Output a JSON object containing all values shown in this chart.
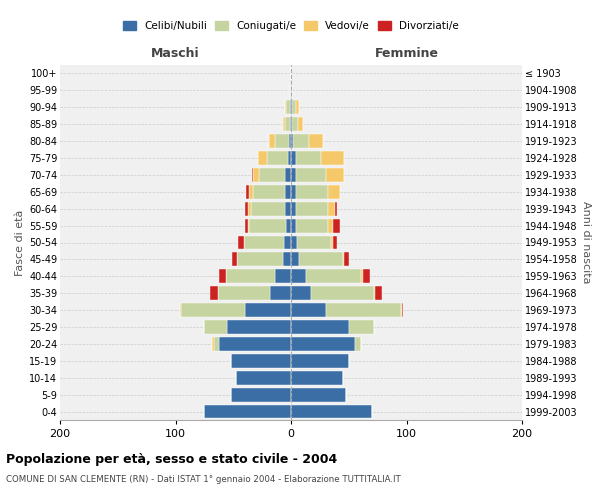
{
  "age_groups": [
    "0-4",
    "5-9",
    "10-14",
    "15-19",
    "20-24",
    "25-29",
    "30-34",
    "35-39",
    "40-44",
    "45-49",
    "50-54",
    "55-59",
    "60-64",
    "65-69",
    "70-74",
    "75-79",
    "80-84",
    "85-89",
    "90-94",
    "95-99",
    "100+"
  ],
  "birth_years": [
    "1999-2003",
    "1994-1998",
    "1989-1993",
    "1984-1988",
    "1979-1983",
    "1974-1978",
    "1969-1973",
    "1964-1968",
    "1959-1963",
    "1954-1958",
    "1949-1953",
    "1944-1948",
    "1939-1943",
    "1934-1938",
    "1929-1933",
    "1924-1928",
    "1919-1923",
    "1914-1918",
    "1909-1913",
    "1904-1908",
    "≤ 1903"
  ],
  "male": {
    "celibe": [
      75,
      52,
      48,
      52,
      62,
      55,
      40,
      18,
      14,
      7,
      6,
      4,
      5,
      5,
      5,
      3,
      2,
      1,
      1,
      0,
      0
    ],
    "coniugato": [
      0,
      0,
      0,
      0,
      5,
      20,
      55,
      45,
      42,
      40,
      35,
      32,
      30,
      28,
      23,
      18,
      12,
      4,
      3,
      1,
      0
    ],
    "vedovo": [
      0,
      0,
      0,
      0,
      1,
      0,
      1,
      0,
      0,
      0,
      0,
      1,
      2,
      3,
      5,
      8,
      5,
      2,
      1,
      0,
      0
    ],
    "divorziato": [
      0,
      0,
      0,
      0,
      0,
      0,
      0,
      7,
      6,
      4,
      5,
      3,
      3,
      3,
      1,
      0,
      0,
      0,
      0,
      0,
      0
    ]
  },
  "female": {
    "nubile": [
      70,
      48,
      45,
      50,
      55,
      50,
      30,
      17,
      13,
      7,
      5,
      4,
      4,
      4,
      4,
      4,
      2,
      1,
      1,
      0,
      0
    ],
    "coniugata": [
      0,
      0,
      0,
      0,
      6,
      22,
      65,
      55,
      48,
      38,
      30,
      28,
      28,
      28,
      26,
      22,
      14,
      5,
      3,
      1,
      0
    ],
    "vedova": [
      0,
      0,
      0,
      0,
      0,
      0,
      1,
      1,
      1,
      1,
      1,
      4,
      6,
      10,
      16,
      20,
      12,
      4,
      3,
      0,
      0
    ],
    "divorziata": [
      0,
      0,
      0,
      0,
      0,
      0,
      1,
      6,
      6,
      4,
      4,
      6,
      2,
      0,
      0,
      0,
      0,
      0,
      0,
      0,
      0
    ]
  },
  "colors": {
    "celibe": "#3A6EA5",
    "coniugato": "#C5D4A0",
    "vedovo": "#F5C96A",
    "divorziato": "#CC2222"
  },
  "legend_labels": [
    "Celibi/Nubili",
    "Coniugati/e",
    "Vedovi/e",
    "Divorziati/e"
  ],
  "title": "Popolazione per età, sesso e stato civile - 2004",
  "subtitle": "COMUNE DI SAN CLEMENTE (RN) - Dati ISTAT 1° gennaio 2004 - Elaborazione TUTTITALIA.IT",
  "xlabel_left": "Maschi",
  "xlabel_right": "Femmine",
  "ylabel_left": "Fasce di età",
  "ylabel_right": "Anni di nascita",
  "xlim": 200,
  "bg_color": "#FFFFFF",
  "plot_bg": "#F0F0F0"
}
